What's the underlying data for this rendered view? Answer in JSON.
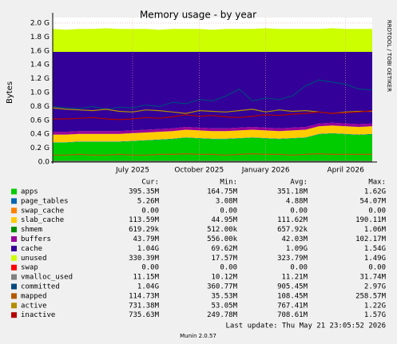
{
  "chart_data": {
    "type": "munin-area",
    "title": "Memory usage - by year",
    "ylabel": "Bytes",
    "side_text": "RRDTOOL / TOBI OETIKER",
    "categories": [
      null,
      null,
      null,
      null,
      null,
      null,
      "July 2025",
      null,
      null,
      null,
      null,
      "October 2025",
      null,
      null,
      null,
      null,
      "January 2026",
      null,
      null,
      null,
      null,
      null,
      "April 2026",
      null,
      null
    ],
    "ylim": [
      0,
      2.08
    ],
    "yticks": [
      {
        "value": 0,
        "label": "0.0"
      },
      {
        "value": 0.2,
        "label": "0.2 G"
      },
      {
        "value": 0.4,
        "label": "0.4 G"
      },
      {
        "value": 0.6,
        "label": "0.6 G"
      },
      {
        "value": 0.8,
        "label": "0.8 G"
      },
      {
        "value": 1.0,
        "label": "1.0 G"
      },
      {
        "value": 1.2,
        "label": "1.2 G"
      },
      {
        "value": 1.4,
        "label": "1.4 G"
      },
      {
        "value": 1.6,
        "label": "1.6 G"
      },
      {
        "value": 1.8,
        "label": "1.8 G"
      },
      {
        "value": 2.0,
        "label": "2.0 G"
      }
    ],
    "grid": true,
    "legend_headers": [
      "Cur:",
      "Min:",
      "Avg:",
      "Max:"
    ],
    "series": [
      {
        "name": "apps",
        "color": "#00cc00",
        "draw": "stack",
        "stats": [
          "395.35M",
          "164.75M",
          "351.18M",
          "1.62G"
        ],
        "values": [
          0.28,
          0.28,
          0.29,
          0.29,
          0.29,
          0.29,
          0.3,
          0.31,
          0.32,
          0.33,
          0.35,
          0.34,
          0.33,
          0.33,
          0.34,
          0.35,
          0.34,
          0.33,
          0.34,
          0.35,
          0.4,
          0.41,
          0.4,
          0.39,
          0.4
        ]
      },
      {
        "name": "page_tables",
        "color": "#0066b3",
        "draw": "stack",
        "stats": [
          "5.26M",
          "3.08M",
          "4.88M",
          "54.07M"
        ],
        "values": [
          0.005,
          0.005,
          0.005,
          0.005,
          0.005,
          0.005,
          0.005,
          0.005,
          0.005,
          0.005,
          0.005,
          0.005,
          0.005,
          0.005,
          0.005,
          0.005,
          0.005,
          0.005,
          0.005,
          0.005,
          0.005,
          0.005,
          0.005,
          0.005,
          0.005
        ]
      },
      {
        "name": "swap_cache",
        "color": "#ff8000",
        "draw": "stack",
        "stats": [
          "0.00",
          "0.00",
          "0.00",
          "0.00"
        ],
        "values": [
          0,
          0,
          0,
          0,
          0,
          0,
          0,
          0,
          0,
          0,
          0,
          0,
          0,
          0,
          0,
          0,
          0,
          0,
          0,
          0,
          0,
          0,
          0,
          0,
          0
        ]
      },
      {
        "name": "slab_cache",
        "color": "#ffcc00",
        "draw": "stack",
        "stats": [
          "113.59M",
          "44.95M",
          "111.62M",
          "190.11M"
        ],
        "values": [
          0.11,
          0.11,
          0.11,
          0.11,
          0.11,
          0.11,
          0.11,
          0.11,
          0.11,
          0.11,
          0.11,
          0.11,
          0.11,
          0.11,
          0.11,
          0.11,
          0.11,
          0.11,
          0.11,
          0.11,
          0.11,
          0.11,
          0.11,
          0.11,
          0.11
        ]
      },
      {
        "name": "shmem",
        "color": "#008f00",
        "draw": "stack",
        "stats": [
          "619.29k",
          "512.00k",
          "657.92k",
          "1.06M"
        ],
        "values": [
          0.0006,
          0.0006,
          0.0006,
          0.0006,
          0.0006,
          0.0006,
          0.0006,
          0.0006,
          0.0006,
          0.0006,
          0.0006,
          0.0006,
          0.0006,
          0.0006,
          0.0006,
          0.0006,
          0.0006,
          0.0006,
          0.0006,
          0.0006,
          0.0006,
          0.0006,
          0.0006,
          0.0006,
          0.0006
        ]
      },
      {
        "name": "buffers",
        "color": "#990099",
        "draw": "stack",
        "stats": [
          "43.79M",
          "556.00k",
          "42.03M",
          "102.17M"
        ],
        "values": [
          0.04,
          0.04,
          0.04,
          0.04,
          0.04,
          0.04,
          0.04,
          0.04,
          0.04,
          0.04,
          0.04,
          0.04,
          0.04,
          0.04,
          0.04,
          0.04,
          0.04,
          0.04,
          0.04,
          0.04,
          0.04,
          0.04,
          0.04,
          0.04,
          0.04
        ]
      },
      {
        "name": "cache",
        "color": "#330099",
        "draw": "stack",
        "stats": [
          "1.04G",
          "69.62M",
          "1.09G",
          "1.54G"
        ],
        "values": [
          1.15,
          1.15,
          1.14,
          1.14,
          1.14,
          1.14,
          1.13,
          1.12,
          1.11,
          1.1,
          1.08,
          1.09,
          1.1,
          1.1,
          1.09,
          1.08,
          1.09,
          1.1,
          1.09,
          1.08,
          1.03,
          1.02,
          1.03,
          1.04,
          1.03
        ]
      },
      {
        "name": "unused",
        "color": "#ccff00",
        "draw": "stack",
        "stats": [
          "330.39M",
          "17.57M",
          "323.79M",
          "1.49G"
        ],
        "values": [
          0.33,
          0.32,
          0.33,
          0.33,
          0.34,
          0.33,
          0.33,
          0.33,
          0.32,
          0.33,
          0.33,
          0.33,
          0.32,
          0.33,
          0.33,
          0.33,
          0.34,
          0.33,
          0.33,
          0.33,
          0.33,
          0.34,
          0.33,
          0.33,
          0.33
        ]
      },
      {
        "name": "swap",
        "color": "#ff0000",
        "draw": "stack",
        "stats": [
          "0.00",
          "0.00",
          "0.00",
          "0.00"
        ],
        "values": [
          0,
          0,
          0,
          0,
          0,
          0,
          0,
          0,
          0,
          0,
          0,
          0,
          0,
          0,
          0,
          0,
          0,
          0,
          0,
          0,
          0,
          0,
          0,
          0,
          0
        ]
      },
      {
        "name": "vmalloc_used",
        "color": "#808080",
        "draw": "line",
        "stats": [
          "11.15M",
          "10.12M",
          "11.21M",
          "31.74M"
        ],
        "values": [
          0.01,
          0.01,
          0.01,
          0.01,
          0.01,
          0.01,
          0.01,
          0.01,
          0.01,
          0.01,
          0.01,
          0.01,
          0.01,
          0.01,
          0.01,
          0.01,
          0.01,
          0.01,
          0.01,
          0.01,
          0.01,
          0.01,
          0.01,
          0.01,
          0.01
        ]
      },
      {
        "name": "committed",
        "color": "#00487d",
        "draw": "line",
        "stats": [
          "1.04G",
          "360.77M",
          "905.45M",
          "2.97G"
        ],
        "values": [
          0.8,
          0.78,
          0.77,
          0.8,
          0.76,
          0.79,
          0.78,
          0.82,
          0.8,
          0.86,
          0.84,
          0.9,
          0.88,
          0.95,
          1.05,
          0.88,
          0.92,
          0.9,
          0.95,
          1.1,
          1.18,
          1.15,
          1.12,
          1.05,
          1.04
        ]
      },
      {
        "name": "mapped",
        "color": "#b35a00",
        "draw": "line",
        "stats": [
          "114.73M",
          "35.53M",
          "108.45M",
          "258.57M"
        ],
        "values": [
          0.1,
          0.1,
          0.11,
          0.1,
          0.1,
          0.11,
          0.1,
          0.1,
          0.11,
          0.11,
          0.12,
          0.11,
          0.11,
          0.1,
          0.11,
          0.12,
          0.11,
          0.11,
          0.1,
          0.11,
          0.12,
          0.11,
          0.11,
          0.11,
          0.11
        ]
      },
      {
        "name": "active",
        "color": "#b38f00",
        "draw": "line",
        "stats": [
          "731.38M",
          "53.05M",
          "767.41M",
          "1.22G"
        ],
        "values": [
          0.78,
          0.76,
          0.75,
          0.74,
          0.76,
          0.73,
          0.72,
          0.75,
          0.74,
          0.72,
          0.7,
          0.74,
          0.73,
          0.72,
          0.74,
          0.76,
          0.72,
          0.75,
          0.73,
          0.74,
          0.72,
          0.7,
          0.72,
          0.73,
          0.73
        ]
      },
      {
        "name": "inactive",
        "color": "#b30000",
        "draw": "line",
        "stats": [
          "735.63M",
          "249.78M",
          "708.61M",
          "1.57G"
        ],
        "values": [
          0.62,
          0.62,
          0.63,
          0.64,
          0.62,
          0.61,
          0.62,
          0.64,
          0.63,
          0.65,
          0.68,
          0.66,
          0.67,
          0.65,
          0.64,
          0.66,
          0.68,
          0.67,
          0.69,
          0.7,
          0.72,
          0.7,
          0.71,
          0.72,
          0.74
        ]
      }
    ],
    "last_update": "Last update: Thu May 21 23:05:52 2026",
    "footer": "Munin 2.0.57"
  }
}
